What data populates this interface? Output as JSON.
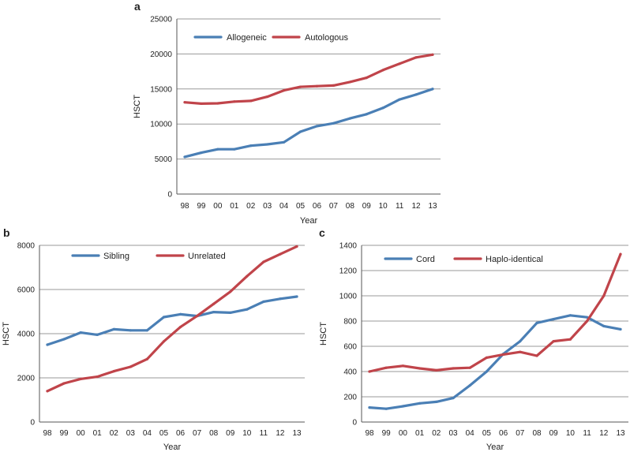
{
  "chart_data": [
    {
      "id": "a",
      "panel_label": "a",
      "type": "line",
      "categories": [
        "98",
        "99",
        "00",
        "01",
        "02",
        "03",
        "04",
        "05",
        "06",
        "07",
        "08",
        "09",
        "10",
        "11",
        "12",
        "13"
      ],
      "series": [
        {
          "name": "Allogeneic",
          "color": "#4a7fb5",
          "values": [
            5300,
            5900,
            6400,
            6400,
            6900,
            7100,
            7400,
            8900,
            9700,
            10100,
            10800,
            11400,
            12300,
            13500,
            14200,
            15000
          ]
        },
        {
          "name": "Autologous",
          "color": "#c0444a",
          "values": [
            13100,
            12900,
            12950,
            13200,
            13300,
            13900,
            14800,
            15300,
            15400,
            15500,
            16000,
            16600,
            17700,
            18600,
            19500,
            19900
          ]
        }
      ],
      "xlabel": "Year",
      "ylabel": "HSCT",
      "ylim": [
        0,
        25000
      ],
      "yticks": [
        0,
        5000,
        10000,
        15000,
        20000,
        25000
      ],
      "grid": true,
      "legend": "top-left"
    },
    {
      "id": "b",
      "panel_label": "b",
      "type": "line",
      "categories": [
        "98",
        "99",
        "00",
        "01",
        "02",
        "03",
        "04",
        "05",
        "06",
        "07",
        "08",
        "09",
        "10",
        "11",
        "12",
        "13"
      ],
      "series": [
        {
          "name": "Sibling",
          "color": "#4a7fb5",
          "values": [
            3500,
            3750,
            4050,
            3950,
            4200,
            4150,
            4150,
            4750,
            4880,
            4800,
            4980,
            4950,
            5100,
            5450,
            5580,
            5680
          ]
        },
        {
          "name": "Unrelated",
          "color": "#c0444a",
          "values": [
            1400,
            1750,
            1950,
            2050,
            2300,
            2500,
            2850,
            3650,
            4300,
            4800,
            5350,
            5900,
            6600,
            7250,
            7600,
            7950
          ]
        }
      ],
      "xlabel": "Year",
      "ylabel": "HSCT",
      "ylim": [
        0,
        8000
      ],
      "yticks": [
        0,
        2000,
        4000,
        6000,
        8000
      ],
      "grid": true,
      "legend": "top-left"
    },
    {
      "id": "c",
      "panel_label": "c",
      "type": "line",
      "categories": [
        "98",
        "99",
        "00",
        "01",
        "02",
        "03",
        "04",
        "05",
        "06",
        "07",
        "08",
        "09",
        "10",
        "11",
        "12",
        "13"
      ],
      "series": [
        {
          "name": "Cord",
          "color": "#4a7fb5",
          "values": [
            115,
            105,
            125,
            148,
            160,
            190,
            290,
            400,
            540,
            640,
            785,
            815,
            845,
            830,
            760,
            735
          ]
        },
        {
          "name": "Haplo-identical",
          "color": "#c0444a",
          "values": [
            400,
            430,
            445,
            425,
            410,
            425,
            430,
            510,
            535,
            555,
            525,
            640,
            655,
            800,
            1000,
            1330
          ]
        }
      ],
      "xlabel": "Year",
      "ylabel": "HSCT",
      "ylim": [
        0,
        1400
      ],
      "yticks": [
        0,
        200,
        400,
        600,
        800,
        1000,
        1200,
        1400
      ],
      "grid": true,
      "legend": "top-left"
    }
  ]
}
